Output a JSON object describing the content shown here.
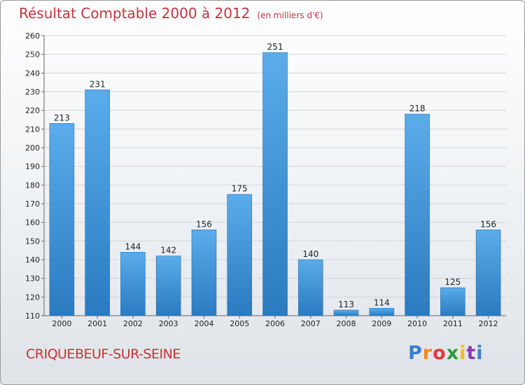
{
  "chart_data": {
    "type": "bar",
    "title": "Résultat Comptable 2000 à 2012",
    "subtitle": "(en milliers d'€)",
    "categories": [
      "2000",
      "2001",
      "2002",
      "2003",
      "2004",
      "2005",
      "2006",
      "2007",
      "2008",
      "2009",
      "2010",
      "2011",
      "2012"
    ],
    "values": [
      213,
      231,
      144,
      142,
      156,
      175,
      251,
      140,
      113,
      114,
      218,
      125,
      156
    ],
    "ylim": [
      110,
      260
    ],
    "yticks": [
      110,
      120,
      130,
      140,
      150,
      160,
      170,
      180,
      190,
      200,
      210,
      220,
      230,
      240,
      250,
      260
    ],
    "grid": true,
    "xlabel": "",
    "ylabel": ""
  },
  "footer": {
    "city": "CRIQUEBEUF-SUR-SEINE",
    "logo": "Proxiti"
  },
  "colors": {
    "title": "#c8323c",
    "bar_light": "#5aacea",
    "bar_dark": "#2a7bc0"
  }
}
